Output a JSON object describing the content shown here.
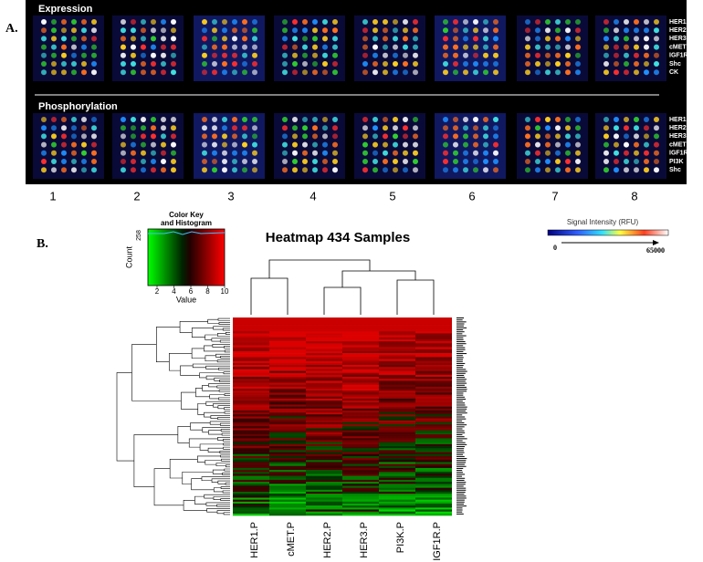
{
  "panel_a": {
    "label": "A.",
    "expression": {
      "title": "Expression",
      "rows": [
        "HER1",
        "HER2",
        "HER3",
        "cMET",
        "IGF1R",
        "Shc",
        "CK"
      ]
    },
    "phosphorylation": {
      "title": "Phosphorylation",
      "rows": [
        "HER1",
        "HER2",
        "HER3",
        "cMET",
        "IGF1R",
        "PI3K",
        "Shc"
      ]
    },
    "lanes": [
      1,
      2,
      3,
      4,
      5,
      6,
      7,
      8
    ]
  },
  "panel_b": {
    "label": "B.",
    "color_key": {
      "title_line1": "Color Key",
      "title_line2": "and Histogram",
      "max_count": 258,
      "y_label": "Count",
      "ticks": [
        2,
        4,
        6,
        8,
        10
      ],
      "x_label": "Value"
    },
    "heatmap": {
      "title": "Heatmap 434 Samples",
      "columns": [
        "HER1.P",
        "cMET.P",
        "HER2.P",
        "HER3.P",
        "PI3K.P",
        "IGF1R.P"
      ]
    },
    "intensity_scale": {
      "title": "Signal Intensity (RFU)",
      "min": 0,
      "max": 65000
    }
  }
}
